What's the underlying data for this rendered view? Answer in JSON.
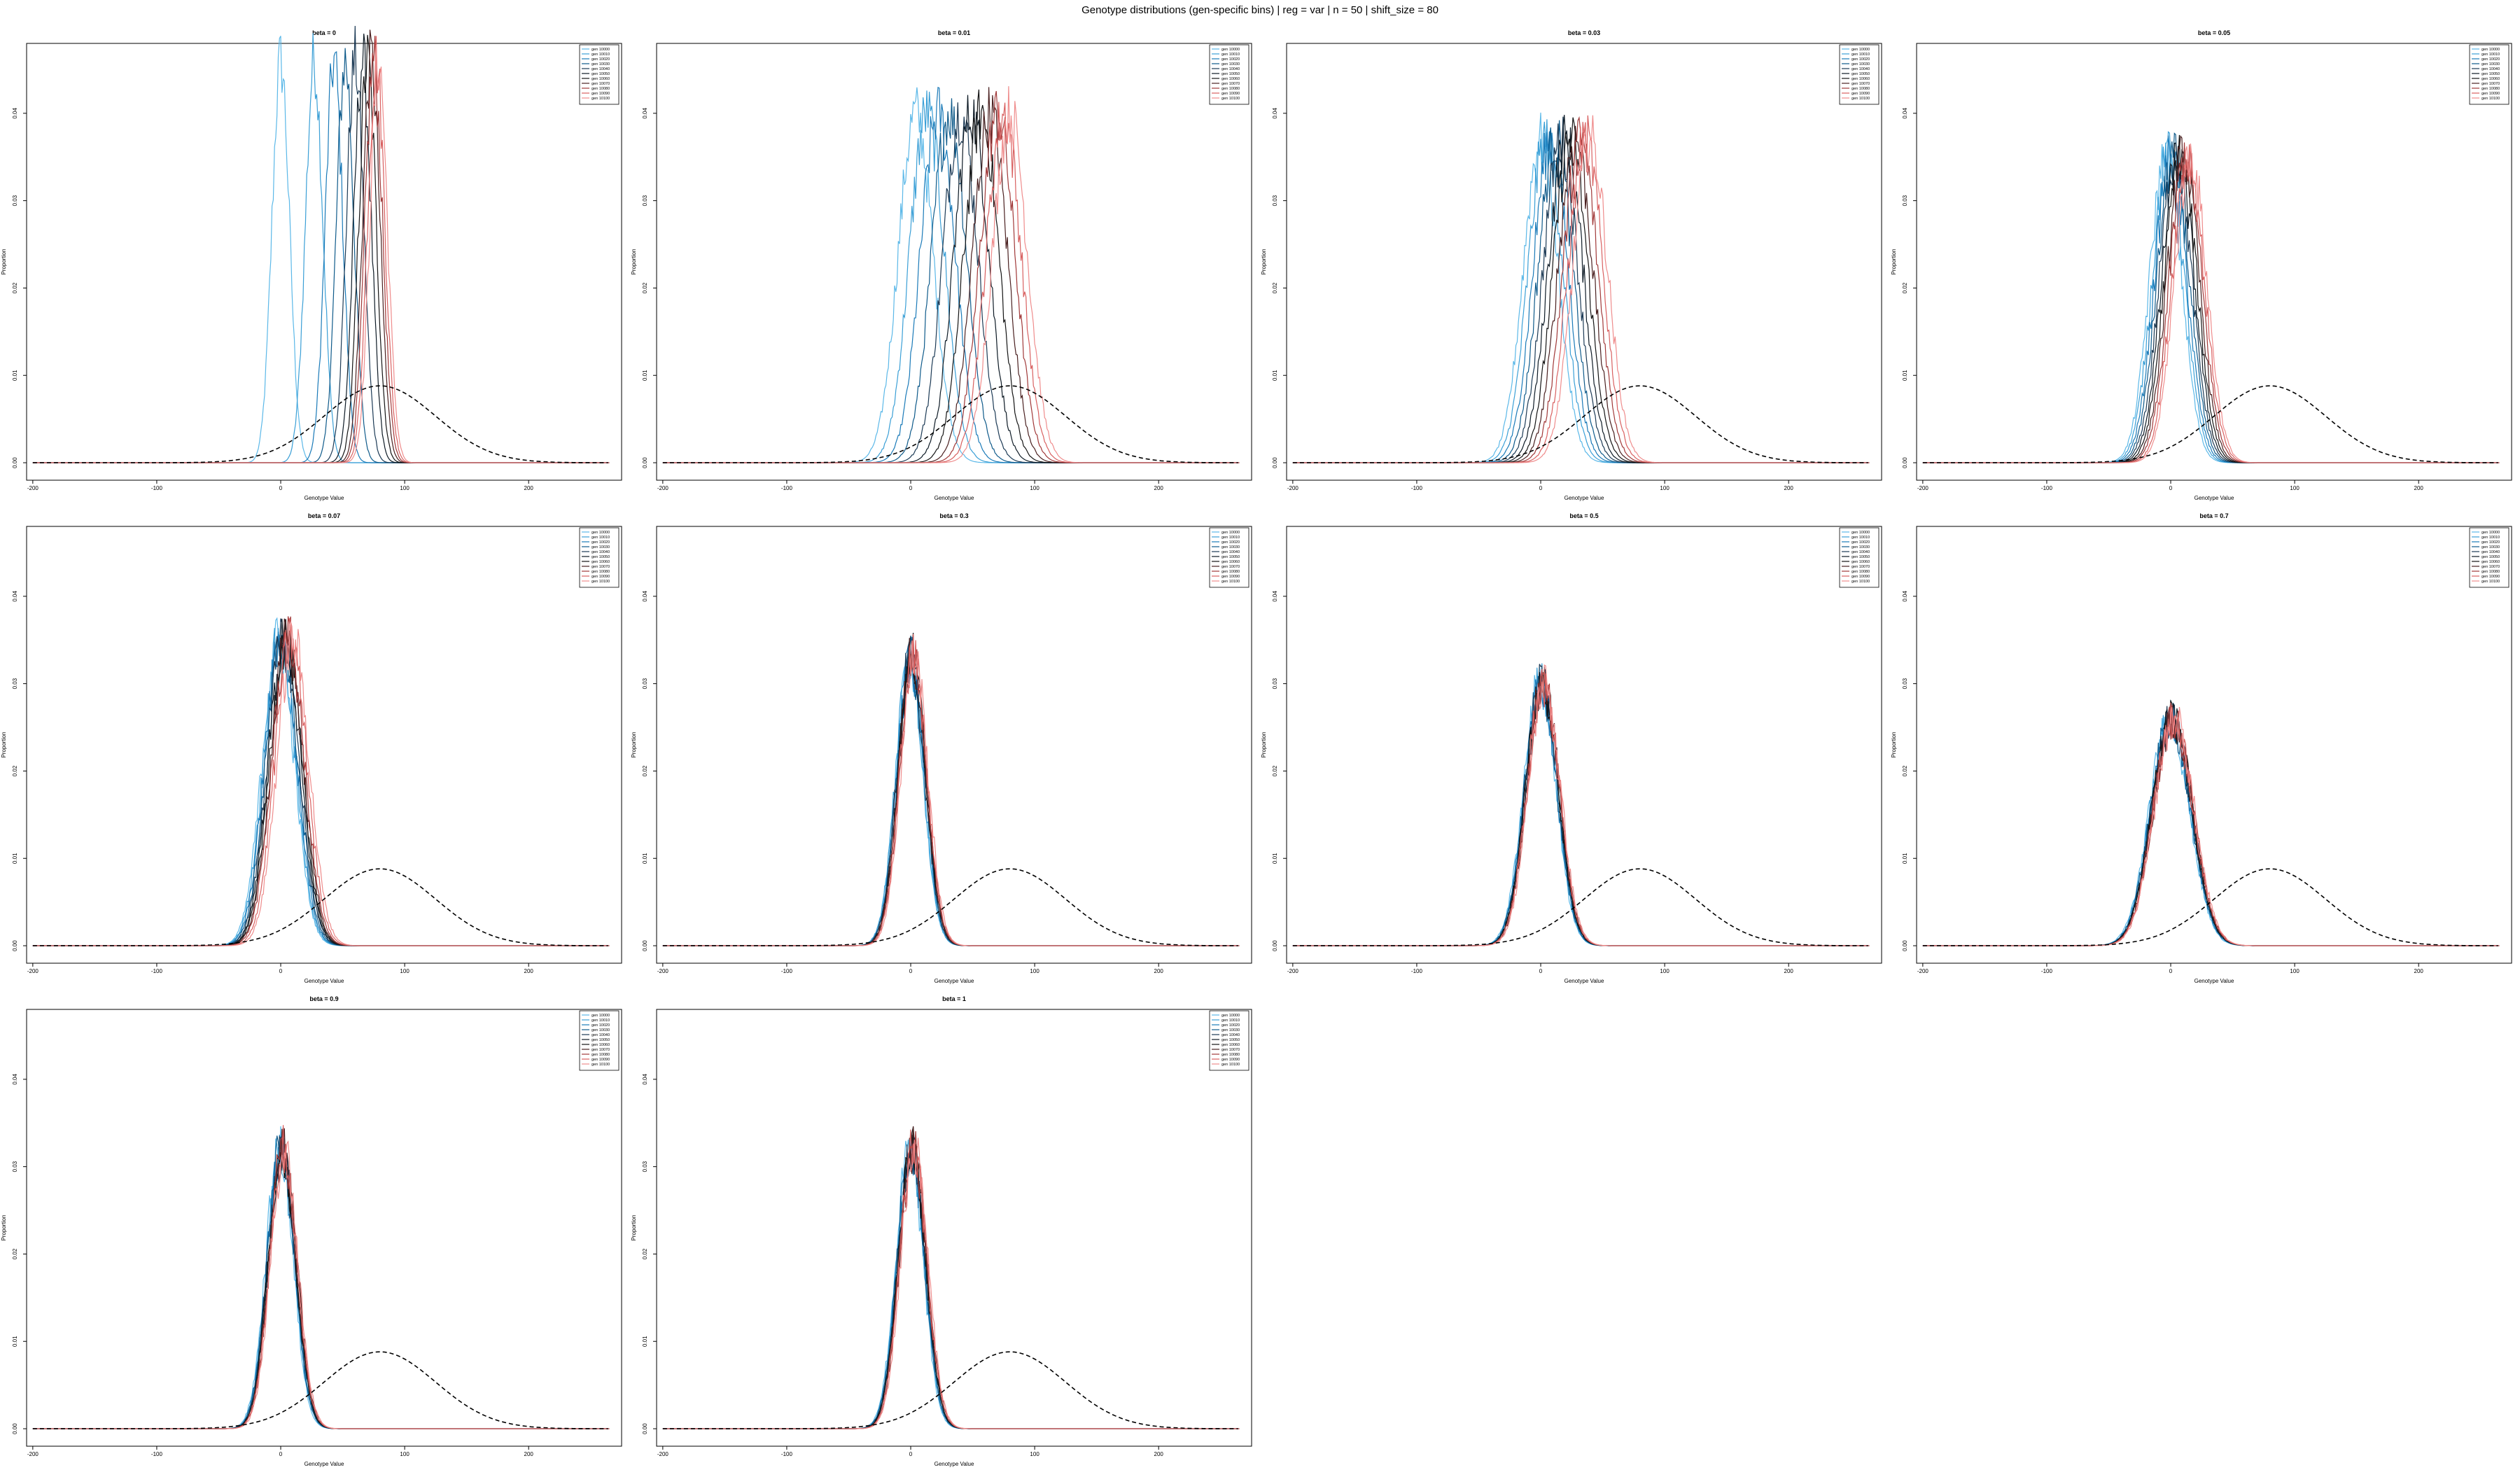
{
  "page_title": "Genotype distributions (gen-specific bins) | reg = var | n = 50 | shift_size = 80",
  "chart_data": {
    "type": "line",
    "xlabel": "Genotype Value",
    "ylabel": "Proportion",
    "x_ticks": [
      -200,
      -100,
      0,
      100,
      200
    ],
    "y_ticks": [
      0.0,
      0.01,
      0.02,
      0.03,
      0.04
    ],
    "xlim": [
      -205,
      275
    ],
    "ylim": [
      -0.002,
      0.048
    ],
    "legend_position": "top-right",
    "legend_entries": [
      "gen 10000",
      "gen 10010",
      "gen 10020",
      "gen 10030",
      "gen 10040",
      "gen 10050",
      "gen 10060",
      "gen 10070",
      "gen 10080",
      "gen 10090",
      "gen 10100"
    ],
    "series_colors": [
      "#5bb8e8",
      "#3a9fd6",
      "#1a7ab8",
      "#0e5a8a",
      "#1c3a55",
      "#0d1a25",
      "#141414",
      "#4a2020",
      "#a03838",
      "#d86060",
      "#ef8c8c"
    ],
    "optimum_curve": {
      "style": "dashed",
      "mean": 80,
      "sd": 45,
      "peak": 0.0088
    },
    "panels": [
      {
        "title": "beta = 0",
        "centers": [
          0,
          27,
          43,
          52,
          60,
          66,
          70,
          73,
          75,
          77,
          79
        ],
        "sd": 7,
        "peak": 0.046
      },
      {
        "title": "beta = 0.01",
        "centers": [
          4,
          13,
          22,
          31,
          40,
          49,
          57,
          64,
          70,
          75,
          80
        ],
        "sd": 14,
        "peak": 0.04
      },
      {
        "title": "beta = 0.03",
        "centers": [
          0,
          4,
          8,
          12,
          16,
          20,
          24,
          28,
          32,
          36,
          40
        ],
        "sd": 14,
        "peak": 0.037
      },
      {
        "title": "beta = 0.05",
        "centers": [
          -4,
          -2,
          0,
          2,
          4,
          6,
          8,
          10,
          12,
          14,
          16
        ],
        "sd": 13,
        "peak": 0.035
      },
      {
        "title": "beta = 0.07",
        "centers": [
          -2,
          -1,
          0,
          1,
          2,
          3,
          4,
          5,
          6,
          8,
          10
        ],
        "sd": 13,
        "peak": 0.035
      },
      {
        "title": "beta = 0.3",
        "centers": [
          -1,
          -1,
          0,
          0,
          0,
          1,
          1,
          1,
          2,
          2,
          3
        ],
        "sd": 11,
        "peak": 0.033
      },
      {
        "title": "beta = 0.5",
        "centers": [
          -1,
          0,
          0,
          0,
          1,
          1,
          1,
          2,
          2,
          2,
          3
        ],
        "sd": 13,
        "peak": 0.03
      },
      {
        "title": "beta = 0.7",
        "centers": [
          -1,
          0,
          0,
          0,
          1,
          1,
          1,
          2,
          2,
          2,
          3
        ],
        "sd": 16,
        "peak": 0.026
      },
      {
        "title": "beta = 0.9",
        "centers": [
          -1,
          0,
          0,
          0,
          1,
          1,
          1,
          2,
          2,
          2,
          3
        ],
        "sd": 11,
        "peak": 0.032
      },
      {
        "title": "beta = 1",
        "centers": [
          -1,
          0,
          0,
          0,
          1,
          1,
          1,
          2,
          2,
          2,
          3
        ],
        "sd": 11,
        "peak": 0.032
      }
    ]
  }
}
